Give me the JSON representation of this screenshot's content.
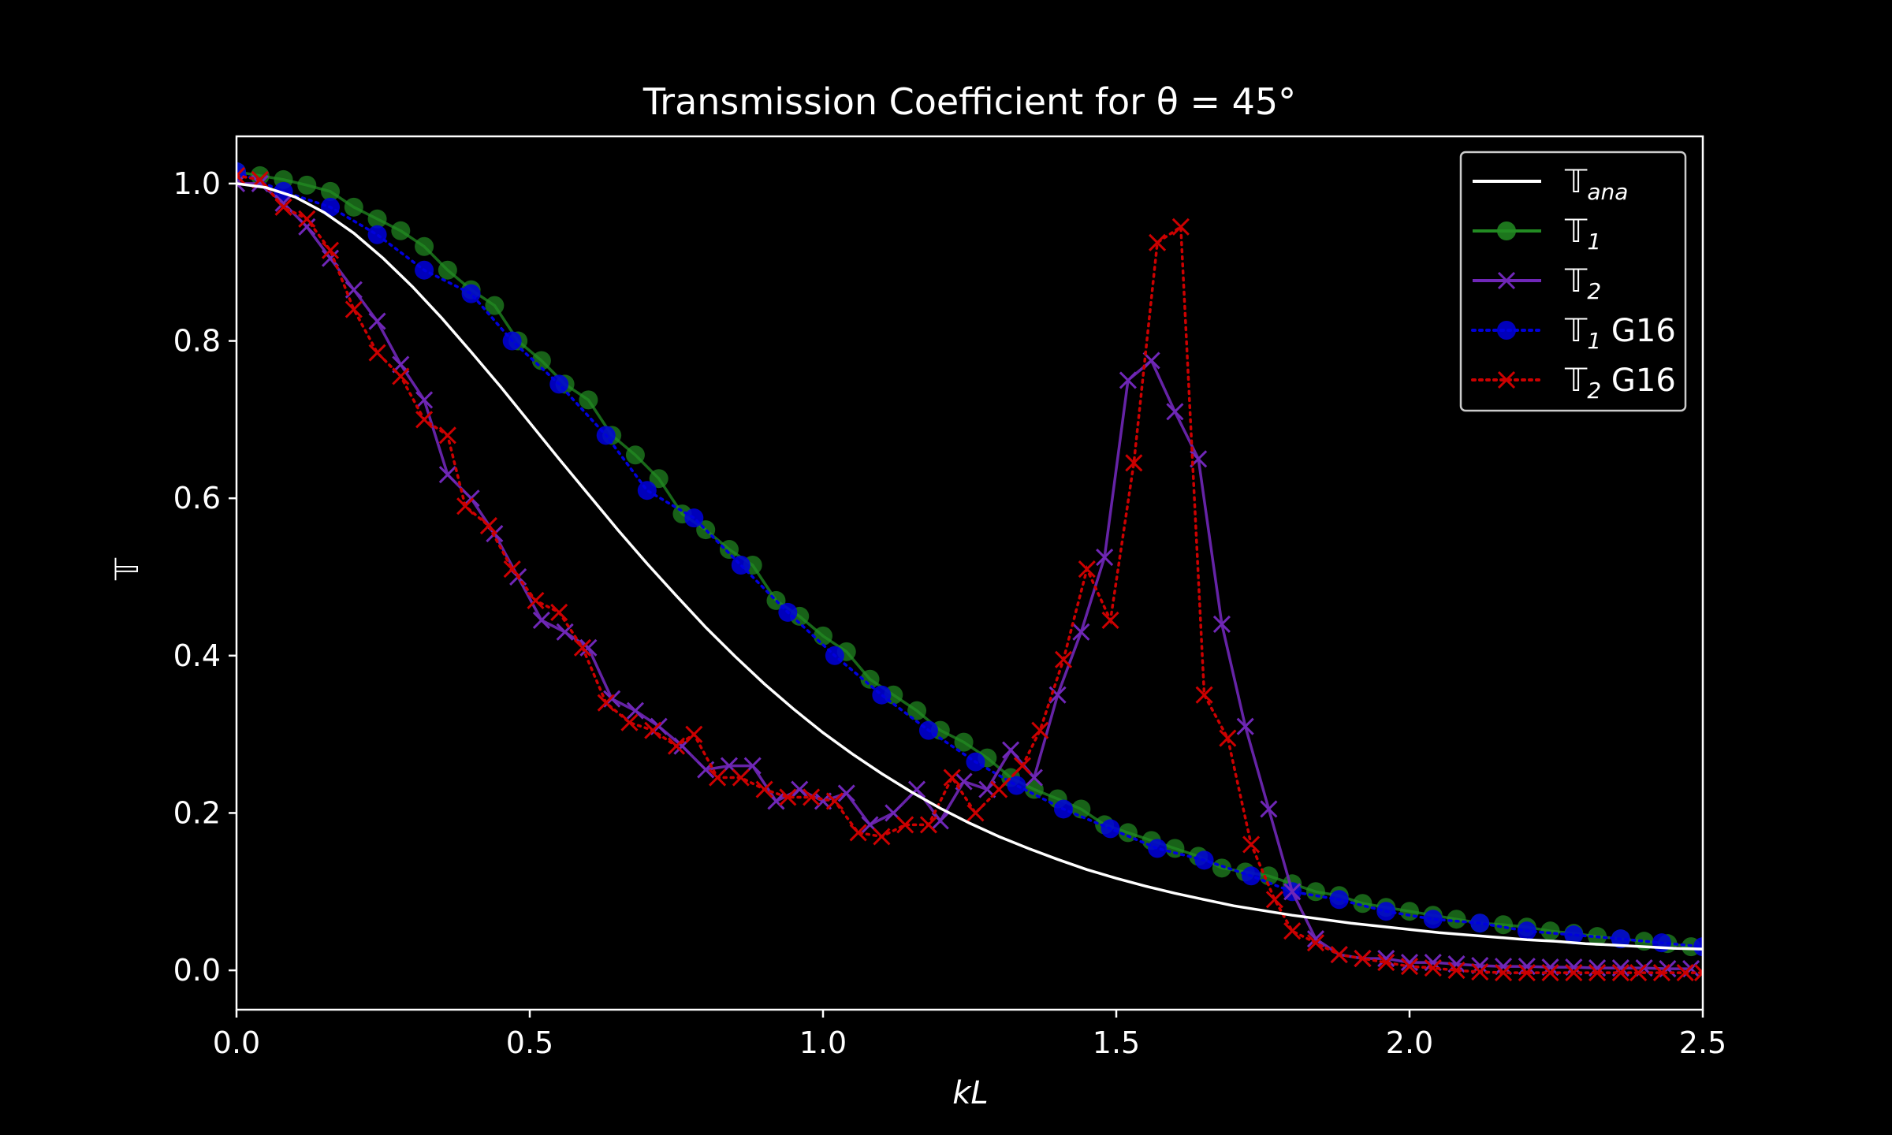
{
  "chart_data": {
    "type": "line",
    "title": "Transmission Coefficient for θ = 45°",
    "xlabel": "kL",
    "ylabel": "𝕋",
    "xlim": [
      0,
      2.5
    ],
    "ylim": [
      -0.05,
      1.06
    ],
    "xticks": [
      0.0,
      0.5,
      1.0,
      1.5,
      2.0,
      2.5
    ],
    "xtick_labels": [
      "0.0",
      "0.5",
      "1.0",
      "1.5",
      "2.0",
      "2.5"
    ],
    "yticks": [
      0.0,
      0.2,
      0.4,
      0.6,
      0.8,
      1.0
    ],
    "ytick_labels": [
      "0.0",
      "0.2",
      "0.4",
      "0.6",
      "0.8",
      "1.0"
    ],
    "grid": false,
    "legend_position": "top-right",
    "background": "#000000",
    "series": [
      {
        "name": "𝕋ana",
        "legend_main": "𝕋",
        "legend_sub": "ana",
        "legend_suffix": "",
        "style": "line",
        "color": "#ffffff",
        "x": [
          0.0,
          0.05,
          0.1,
          0.15,
          0.2,
          0.25,
          0.3,
          0.35,
          0.4,
          0.45,
          0.5,
          0.55,
          0.6,
          0.65,
          0.7,
          0.75,
          0.8,
          0.85,
          0.9,
          0.95,
          1.0,
          1.05,
          1.1,
          1.15,
          1.2,
          1.25,
          1.3,
          1.35,
          1.4,
          1.45,
          1.5,
          1.55,
          1.6,
          1.65,
          1.7,
          1.75,
          1.8,
          1.85,
          1.9,
          1.95,
          2.0,
          2.05,
          2.1,
          2.15,
          2.2,
          2.25,
          2.3,
          2.35,
          2.4,
          2.45,
          2.5
        ],
        "y": [
          1.0,
          0.995,
          0.983,
          0.963,
          0.937,
          0.905,
          0.869,
          0.829,
          0.786,
          0.742,
          0.696,
          0.65,
          0.605,
          0.56,
          0.517,
          0.476,
          0.436,
          0.399,
          0.364,
          0.332,
          0.302,
          0.275,
          0.25,
          0.227,
          0.206,
          0.187,
          0.17,
          0.155,
          0.141,
          0.128,
          0.117,
          0.107,
          0.098,
          0.09,
          0.082,
          0.076,
          0.07,
          0.065,
          0.06,
          0.056,
          0.052,
          0.048,
          0.045,
          0.042,
          0.039,
          0.037,
          0.034,
          0.032,
          0.03,
          0.028,
          0.027
        ]
      },
      {
        "name": "𝕋1",
        "legend_main": "𝕋",
        "legend_sub": "1",
        "legend_suffix": "",
        "style": "line-circle",
        "color": "#228b22",
        "x": [
          0.0,
          0.04,
          0.08,
          0.12,
          0.16,
          0.2,
          0.24,
          0.28,
          0.32,
          0.36,
          0.4,
          0.44,
          0.48,
          0.52,
          0.56,
          0.6,
          0.64,
          0.68,
          0.72,
          0.76,
          0.8,
          0.84,
          0.88,
          0.92,
          0.96,
          1.0,
          1.04,
          1.08,
          1.12,
          1.16,
          1.2,
          1.24,
          1.28,
          1.32,
          1.36,
          1.4,
          1.44,
          1.48,
          1.52,
          1.56,
          1.6,
          1.64,
          1.68,
          1.72,
          1.76,
          1.8,
          1.84,
          1.88,
          1.92,
          1.96,
          2.0,
          2.04,
          2.08,
          2.12,
          2.16,
          2.2,
          2.24,
          2.28,
          2.32,
          2.36,
          2.4,
          2.44,
          2.48
        ],
        "y": [
          1.015,
          1.01,
          1.005,
          0.998,
          0.99,
          0.97,
          0.955,
          0.94,
          0.92,
          0.89,
          0.865,
          0.845,
          0.8,
          0.775,
          0.745,
          0.725,
          0.68,
          0.655,
          0.625,
          0.58,
          0.56,
          0.535,
          0.515,
          0.47,
          0.45,
          0.425,
          0.405,
          0.37,
          0.35,
          0.33,
          0.305,
          0.29,
          0.27,
          0.245,
          0.23,
          0.218,
          0.205,
          0.185,
          0.175,
          0.165,
          0.155,
          0.145,
          0.13,
          0.125,
          0.12,
          0.11,
          0.1,
          0.095,
          0.085,
          0.08,
          0.075,
          0.07,
          0.065,
          0.06,
          0.058,
          0.055,
          0.05,
          0.047,
          0.043,
          0.04,
          0.037,
          0.034,
          0.03
        ]
      },
      {
        "name": "𝕋2",
        "legend_main": "𝕋",
        "legend_sub": "2",
        "legend_suffix": "",
        "style": "line-x",
        "color": "#7027b8",
        "x": [
          0.0,
          0.04,
          0.08,
          0.12,
          0.16,
          0.2,
          0.24,
          0.28,
          0.32,
          0.36,
          0.4,
          0.44,
          0.48,
          0.52,
          0.56,
          0.6,
          0.64,
          0.68,
          0.72,
          0.76,
          0.8,
          0.84,
          0.88,
          0.92,
          0.96,
          1.0,
          1.04,
          1.08,
          1.12,
          1.16,
          1.2,
          1.24,
          1.28,
          1.32,
          1.36,
          1.4,
          1.44,
          1.48,
          1.52,
          1.56,
          1.6,
          1.64,
          1.68,
          1.72,
          1.76,
          1.8,
          1.84,
          1.88,
          1.92,
          1.96,
          2.0,
          2.04,
          2.08,
          2.12,
          2.16,
          2.2,
          2.24,
          2.28,
          2.32,
          2.36,
          2.4,
          2.44,
          2.48
        ],
        "y": [
          1.0,
          1.0,
          0.975,
          0.945,
          0.905,
          0.865,
          0.825,
          0.77,
          0.725,
          0.63,
          0.6,
          0.555,
          0.5,
          0.445,
          0.43,
          0.41,
          0.345,
          0.33,
          0.31,
          0.285,
          0.255,
          0.26,
          0.26,
          0.215,
          0.23,
          0.215,
          0.225,
          0.185,
          0.2,
          0.23,
          0.19,
          0.24,
          0.23,
          0.28,
          0.245,
          0.35,
          0.43,
          0.525,
          0.75,
          0.775,
          0.71,
          0.65,
          0.44,
          0.31,
          0.205,
          0.1,
          0.04,
          0.02,
          0.015,
          0.015,
          0.01,
          0.01,
          0.008,
          0.006,
          0.005,
          0.005,
          0.004,
          0.004,
          0.003,
          0.003,
          0.003,
          0.002,
          0.002
        ]
      },
      {
        "name": "𝕋1 G16",
        "legend_main": "𝕋",
        "legend_sub": "1",
        "legend_suffix": " G16",
        "style": "dotted-circle",
        "color": "#0000dd",
        "x": [
          0.0,
          0.08,
          0.16,
          0.24,
          0.32,
          0.4,
          0.47,
          0.55,
          0.63,
          0.7,
          0.78,
          0.86,
          0.94,
          1.02,
          1.1,
          1.18,
          1.26,
          1.33,
          1.41,
          1.49,
          1.57,
          1.65,
          1.73,
          1.8,
          1.88,
          1.96,
          2.04,
          2.12,
          2.2,
          2.28,
          2.36,
          2.43,
          2.5
        ],
        "y": [
          1.015,
          0.99,
          0.97,
          0.935,
          0.89,
          0.86,
          0.8,
          0.745,
          0.68,
          0.61,
          0.575,
          0.515,
          0.455,
          0.4,
          0.35,
          0.305,
          0.265,
          0.235,
          0.205,
          0.18,
          0.155,
          0.14,
          0.12,
          0.1,
          0.09,
          0.075,
          0.065,
          0.06,
          0.05,
          0.045,
          0.04,
          0.035,
          0.03
        ]
      },
      {
        "name": "𝕋2 G16",
        "legend_main": "𝕋",
        "legend_sub": "2",
        "legend_suffix": " G16",
        "style": "dotted-x",
        "color": "#cc0000",
        "x": [
          0.0,
          0.04,
          0.08,
          0.12,
          0.16,
          0.2,
          0.24,
          0.28,
          0.32,
          0.36,
          0.39,
          0.43,
          0.47,
          0.51,
          0.55,
          0.59,
          0.63,
          0.67,
          0.71,
          0.75,
          0.78,
          0.82,
          0.86,
          0.9,
          0.94,
          0.98,
          1.02,
          1.06,
          1.1,
          1.14,
          1.18,
          1.22,
          1.26,
          1.3,
          1.34,
          1.37,
          1.41,
          1.45,
          1.49,
          1.53,
          1.57,
          1.61,
          1.65,
          1.69,
          1.73,
          1.77,
          1.8,
          1.84,
          1.88,
          1.92,
          1.96,
          2.0,
          2.04,
          2.08,
          2.12,
          2.16,
          2.2,
          2.24,
          2.28,
          2.32,
          2.36,
          2.39,
          2.43,
          2.47,
          2.5
        ],
        "y": [
          1.01,
          1.005,
          0.97,
          0.955,
          0.915,
          0.84,
          0.785,
          0.755,
          0.7,
          0.68,
          0.59,
          0.565,
          0.51,
          0.47,
          0.455,
          0.41,
          0.34,
          0.315,
          0.305,
          0.285,
          0.3,
          0.245,
          0.245,
          0.23,
          0.22,
          0.22,
          0.215,
          0.175,
          0.17,
          0.185,
          0.185,
          0.245,
          0.2,
          0.23,
          0.26,
          0.305,
          0.395,
          0.51,
          0.445,
          0.645,
          0.925,
          0.945,
          0.35,
          0.295,
          0.16,
          0.09,
          0.05,
          0.035,
          0.02,
          0.015,
          0.01,
          0.005,
          0.003,
          0.0,
          -0.002,
          -0.003,
          -0.003,
          -0.003,
          -0.003,
          -0.003,
          -0.003,
          -0.003,
          -0.003,
          -0.003,
          -0.003
        ]
      }
    ]
  }
}
